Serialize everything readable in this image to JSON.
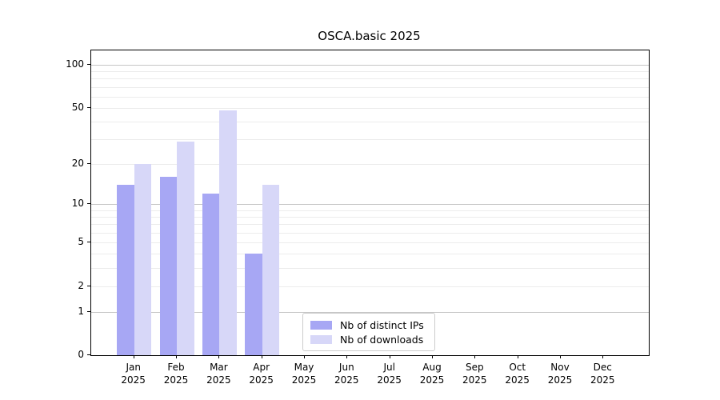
{
  "chart_data": {
    "type": "bar",
    "title": "OSCA.basic 2025",
    "scale": "log10(1+y)",
    "categories": [
      "Jan",
      "Feb",
      "Mar",
      "Apr",
      "May",
      "Jun",
      "Jul",
      "Aug",
      "Sep",
      "Oct",
      "Nov",
      "Dec"
    ],
    "year_label": "2025",
    "series": [
      {
        "name": "Nb of distinct IPs",
        "color": "#a7a7f4",
        "values": [
          14,
          16,
          12,
          4,
          0,
          0,
          0,
          0,
          0,
          0,
          0,
          0
        ]
      },
      {
        "name": "Nb of downloads",
        "color": "#d7d7f8",
        "values": [
          20,
          29,
          48,
          14,
          0,
          0,
          0,
          0,
          0,
          0,
          0,
          0
        ]
      }
    ],
    "y_axis": {
      "tick_values": [
        0,
        1,
        2,
        5,
        10,
        20,
        50,
        100
      ],
      "tick_labels": [
        "0",
        "1",
        "2",
        "5",
        "10",
        "20",
        "50",
        "100"
      ],
      "major_gridlines": [
        1,
        10,
        100
      ],
      "minor_gridlines": [
        2,
        3,
        4,
        5,
        6,
        7,
        8,
        9,
        20,
        30,
        40,
        50,
        60,
        70,
        80,
        90
      ],
      "max": 126
    },
    "legend_position": "lower center",
    "grid": true
  }
}
